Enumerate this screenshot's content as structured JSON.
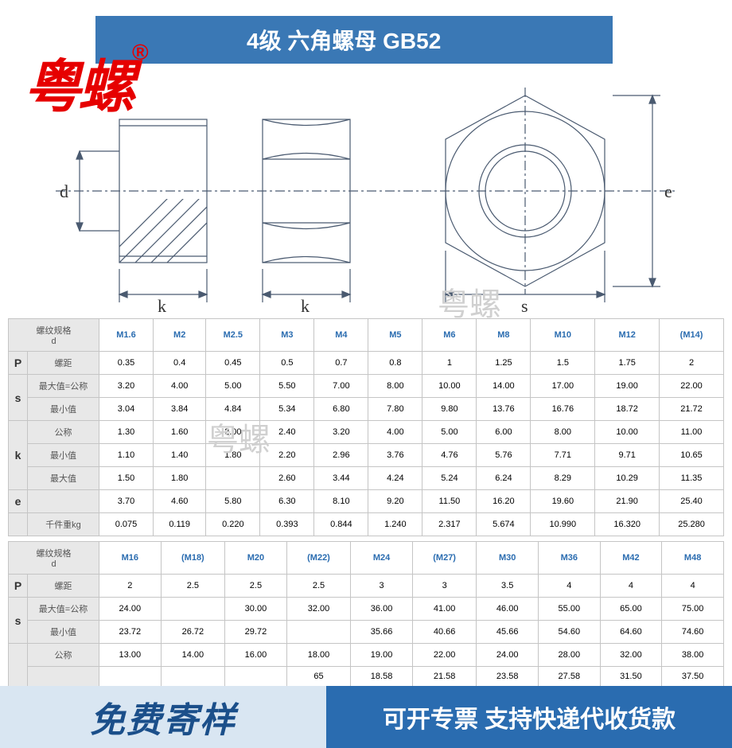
{
  "brand": "粤螺",
  "brand_symbol": "®",
  "title": "4级 六角螺母 GB52",
  "watermark": "粤螺",
  "diagram_labels": {
    "d": "d",
    "k": "k",
    "s": "s",
    "e": "e"
  },
  "table1": {
    "header_label": "螺纹规格\nd",
    "sizes": [
      "M1.6",
      "M2",
      "M2.5",
      "M3",
      "M4",
      "M5",
      "M6",
      "M8",
      "M10",
      "M12",
      "(M14)"
    ],
    "sections": [
      {
        "side": "P",
        "rows": [
          {
            "label": "螺距",
            "vals": [
              "0.35",
              "0.4",
              "0.45",
              "0.5",
              "0.7",
              "0.8",
              "1",
              "1.25",
              "1.5",
              "1.75",
              "2"
            ]
          }
        ]
      },
      {
        "side": "s",
        "rows": [
          {
            "label": "最大值=公称",
            "vals": [
              "3.20",
              "4.00",
              "5.00",
              "5.50",
              "7.00",
              "8.00",
              "10.00",
              "14.00",
              "17.00",
              "19.00",
              "22.00"
            ]
          },
          {
            "label": "最小值",
            "vals": [
              "3.04",
              "3.84",
              "4.84",
              "5.34",
              "6.80",
              "7.80",
              "9.80",
              "13.76",
              "16.76",
              "18.72",
              "21.72"
            ]
          }
        ]
      },
      {
        "side": "k",
        "rows": [
          {
            "label": "公称",
            "vals": [
              "1.30",
              "1.60",
              "2.00",
              "2.40",
              "3.20",
              "4.00",
              "5.00",
              "6.00",
              "8.00",
              "10.00",
              "11.00"
            ]
          },
          {
            "label": "最小值",
            "vals": [
              "1.10",
              "1.40",
              "1.80",
              "2.20",
              "2.96",
              "3.76",
              "4.76",
              "5.76",
              "7.71",
              "9.71",
              "10.65"
            ]
          },
          {
            "label": "最大值",
            "vals": [
              "1.50",
              "1.80",
              "",
              "2.60",
              "3.44",
              "4.24",
              "5.24",
              "6.24",
              "8.29",
              "10.29",
              "11.35"
            ]
          }
        ]
      },
      {
        "side": "e",
        "rows": [
          {
            "label": "",
            "vals": [
              "3.70",
              "4.60",
              "5.80",
              "6.30",
              "8.10",
              "9.20",
              "11.50",
              "16.20",
              "19.60",
              "21.90",
              "25.40"
            ]
          }
        ]
      },
      {
        "side": "",
        "rows": [
          {
            "label": "千件重kg",
            "vals": [
              "0.075",
              "0.119",
              "0.220",
              "0.393",
              "0.844",
              "1.240",
              "2.317",
              "5.674",
              "10.990",
              "16.320",
              "25.280"
            ]
          }
        ]
      }
    ]
  },
  "table2": {
    "header_label": "螺纹规格\nd",
    "sizes": [
      "M16",
      "(M18)",
      "M20",
      "(M22)",
      "M24",
      "(M27)",
      "M30",
      "M36",
      "M42",
      "M48"
    ],
    "sections": [
      {
        "side": "P",
        "rows": [
          {
            "label": "螺距",
            "vals": [
              "2",
              "2.5",
              "2.5",
              "2.5",
              "3",
              "3",
              "3.5",
              "4",
              "4",
              "4"
            ]
          }
        ]
      },
      {
        "side": "s",
        "rows": [
          {
            "label": "最大值=公称",
            "vals": [
              "24.00",
              "",
              "30.00",
              "32.00",
              "36.00",
              "41.00",
              "46.00",
              "55.00",
              "65.00",
              "75.00"
            ]
          },
          {
            "label": "最小值",
            "vals": [
              "23.72",
              "26.72",
              "29.72",
              "",
              "35.66",
              "40.66",
              "45.66",
              "54.60",
              "64.60",
              "74.60"
            ]
          }
        ]
      },
      {
        "side": "",
        "rows": [
          {
            "label": "公称",
            "vals": [
              "13.00",
              "14.00",
              "16.00",
              "18.00",
              "19.00",
              "22.00",
              "24.00",
              "28.00",
              "32.00",
              "38.00"
            ]
          },
          {
            "label": "",
            "vals": [
              "",
              "",
              "",
              "65",
              "18.58",
              "21.58",
              "23.58",
              "27.58",
              "31.50",
              "37.50"
            ]
          }
        ]
      }
    ]
  },
  "footer": {
    "left": "免费寄样",
    "right": "可开专票 支持快递代收货款"
  },
  "colors": {
    "title_bg": "#3a78b5",
    "brand": "#e60000",
    "link": "#2a6cb0",
    "header_bg": "#e8e8e8",
    "border": "#c5c5c5",
    "footer_left_bg": "#d9e6f2",
    "footer_left_text": "#1b4f8a",
    "footer_right_bg": "#2a6cb0",
    "diagram_stroke": "#4a5a70"
  }
}
